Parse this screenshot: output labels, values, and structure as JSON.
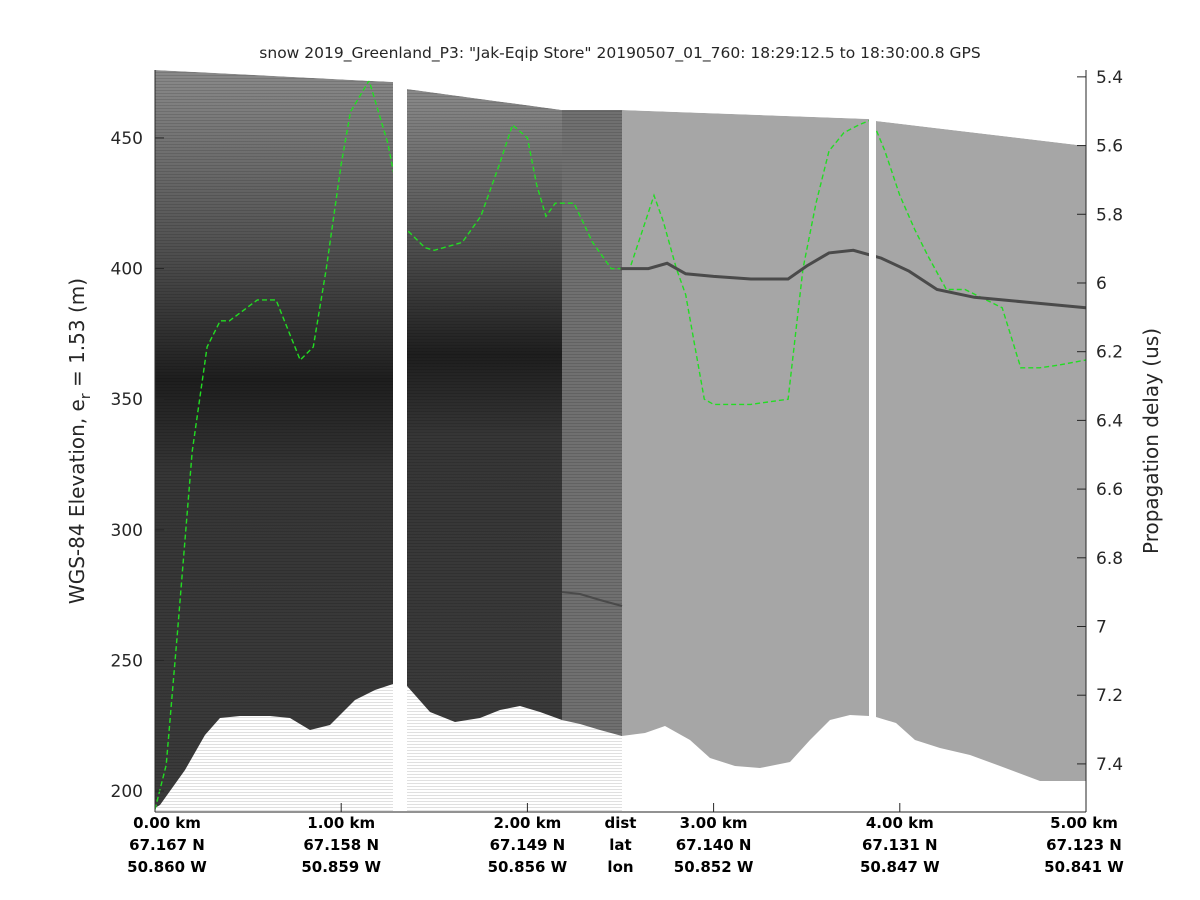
{
  "chart_data": {
    "type": "line",
    "title": "snow 2019_Greenland_P3: \"Jak-Eqip Store\"  20190507_01_760: 18:29:12.5 to 18:30:00.8 GPS",
    "ylabel_left_main": "WGS-84 Elevation, e",
    "ylabel_left_sub": "r",
    "ylabel_left_tail": " = 1.53 (m)",
    "ylabel_right": "Propagation delay (us)",
    "xlim": [
      0,
      5
    ],
    "ylim": [
      192,
      476
    ],
    "y2lim": [
      5.38,
      7.54
    ],
    "yticks": [
      200,
      250,
      300,
      350,
      400,
      450
    ],
    "y2ticks": [
      "5.4",
      "5.6",
      "5.8",
      "6",
      "6.2",
      "6.4",
      "6.6",
      "6.8",
      "7",
      "7.2",
      "7.4"
    ],
    "xticks": [
      {
        "x": 0,
        "dist": "0.00 km",
        "lat": "67.167 N",
        "lon": "50.860 W"
      },
      {
        "x": 1,
        "dist": "1.00 km",
        "lat": "67.158 N",
        "lon": "50.859 W"
      },
      {
        "x": 2,
        "dist": "2.00 km",
        "lat": "67.149 N",
        "lon": "50.856 W"
      },
      {
        "x": 3,
        "dist": "3.00 km",
        "lat": "67.140 N",
        "lon": "50.852 W"
      },
      {
        "x": 4,
        "dist": "4.00 km",
        "lat": "67.131 N",
        "lon": "50.847 W"
      },
      {
        "x": 5,
        "dist": "5.00 km",
        "lat": "67.123 N",
        "lon": "50.841 W"
      }
    ],
    "row_labels": {
      "x": 2.5,
      "dist": "dist",
      "lat": "lat",
      "lon": "lon"
    },
    "colors": {
      "trace": "#22dd22",
      "panel_dark": "#2e2e2e",
      "panel_mid": "#707070",
      "panel_light": "#a6a6a6",
      "layer": "#4a4a4a"
    },
    "series": [
      {
        "style": "dashed",
        "x": [
          0,
          0.06,
          0.12,
          0.2,
          0.28,
          0.35,
          0.4,
          0.55,
          0.65,
          0.78,
          0.85,
          0.92,
          1.0,
          1.05,
          1.15,
          1.25,
          1.3,
          1.35,
          1.45,
          1.5,
          1.65,
          1.75,
          1.85,
          1.92,
          2.0,
          2.05,
          2.1,
          2.15,
          2.25,
          2.35,
          2.45,
          2.55,
          2.62,
          2.68,
          2.73,
          2.8,
          2.85,
          2.95,
          3.0,
          3.2,
          3.4,
          3.48,
          3.55,
          3.62,
          3.7,
          3.78,
          3.85,
          3.92,
          4.0,
          4.08,
          4.15,
          4.25,
          4.35,
          4.55,
          4.65,
          4.75,
          4.85,
          5.0
        ],
        "y": [
          193,
          210,
          260,
          330,
          370,
          380,
          380,
          388,
          388,
          365,
          370,
          400,
          440,
          460,
          472,
          448,
          430,
          415,
          408,
          407,
          410,
          420,
          440,
          455,
          450,
          432,
          420,
          425,
          425,
          410,
          400,
          400,
          415,
          428,
          418,
          400,
          390,
          350,
          348,
          348,
          350,
          400,
          425,
          445,
          452,
          455,
          457,
          445,
          428,
          415,
          405,
          392,
          392,
          385,
          362,
          362,
          363,
          365
        ]
      },
      {
        "style": "layer",
        "x": [
          2.5,
          2.65,
          2.75,
          2.85,
          3.0,
          3.2,
          3.4,
          3.5,
          3.62,
          3.75,
          3.9,
          4.05,
          4.2,
          4.4,
          4.7,
          5.0
        ],
        "y": [
          400,
          400,
          402,
          398,
          397,
          396,
          396,
          401,
          406,
          407,
          404,
          399,
          392,
          389,
          387,
          385
        ]
      }
    ]
  }
}
